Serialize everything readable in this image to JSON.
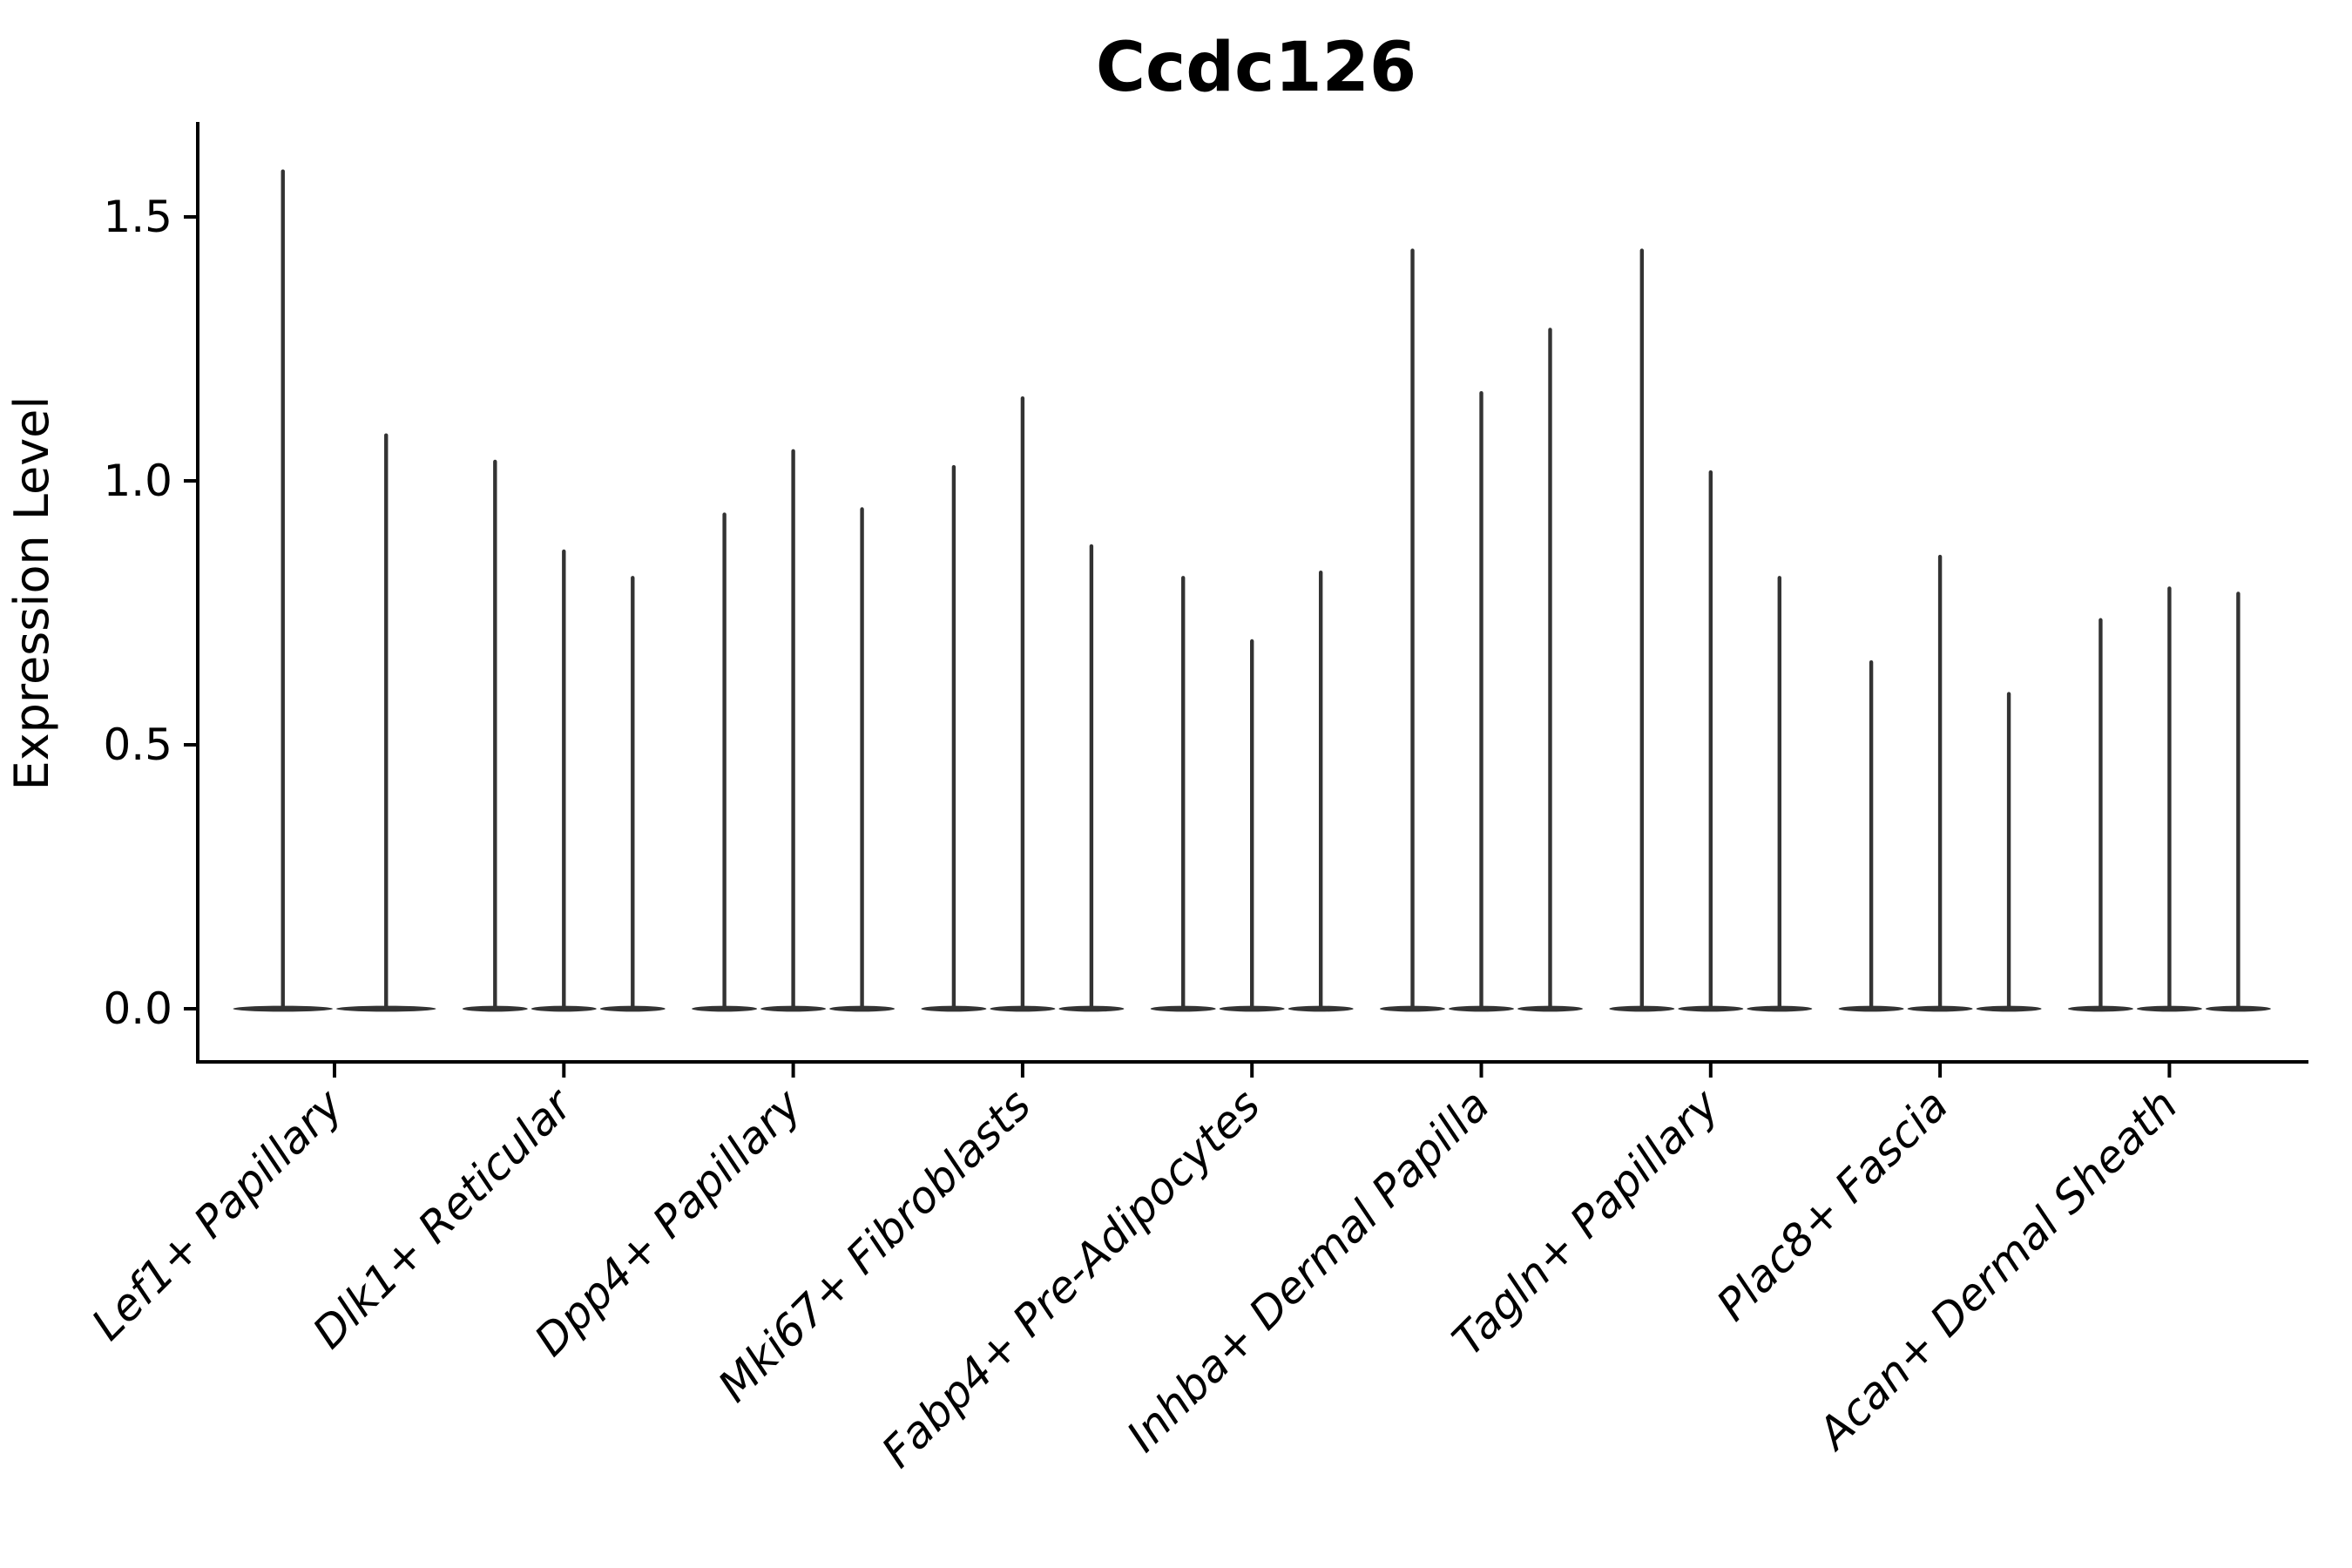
{
  "chart_data": {
    "type": "violin",
    "title": "Ccdc126",
    "xlabel": "",
    "ylabel": "Expression Level",
    "yticks": [
      0.0,
      0.5,
      1.0,
      1.5
    ],
    "ytick_labels": [
      "0.0",
      "0.5",
      "1.0",
      "1.5"
    ],
    "ylim": [
      -0.1,
      1.68
    ],
    "grid": false,
    "legend": null,
    "x_tick_rotation_deg": 45,
    "x_tick_style": "italic",
    "violin_color": "#333333",
    "axis_color": "#000000",
    "background": "#ffffff",
    "description": "Each violin is a near-flat density pancake at expression 0 with a thin vertical spike reaching the maximum expression value; clusters contain 2-3 violins (samples).",
    "categories": [
      "Lef1+ Papillary",
      "Dlk1+ Reticular",
      "Dpp4+ Papillary",
      "Mki67+ Fibroblasts",
      "Fabp4+ Pre-Adipocytes",
      "Inhba+ Dermal Papilla",
      "Tagln+ Papillary",
      "Plac8+ Fascia",
      "Acan+ Dermal Sheath"
    ],
    "groups": [
      {
        "label": "Lef1+ Papillary",
        "violin_max_values": [
          1.59,
          1.09
        ]
      },
      {
        "label": "Dlk1+ Reticular",
        "violin_max_values": [
          1.04,
          0.87,
          0.82
        ]
      },
      {
        "label": "Dpp4+ Papillary",
        "violin_max_values": [
          0.94,
          1.06,
          0.95
        ]
      },
      {
        "label": "Mki67+ Fibroblasts",
        "violin_max_values": [
          1.03,
          1.16,
          0.88
        ]
      },
      {
        "label": "Fabp4+ Pre-Adipocytes",
        "violin_max_values": [
          0.82,
          0.7,
          0.83
        ]
      },
      {
        "label": "Inhba+ Dermal Papilla",
        "violin_max_values": [
          1.44,
          1.17,
          1.29
        ]
      },
      {
        "label": "Tagln+ Papillary",
        "violin_max_values": [
          1.44,
          1.02,
          0.82
        ]
      },
      {
        "label": "Plac8+ Fascia",
        "violin_max_values": [
          0.66,
          0.86,
          0.6
        ]
      },
      {
        "label": "Acan+ Dermal Sheath",
        "violin_max_values": [
          0.74,
          0.8,
          0.79
        ]
      }
    ]
  }
}
